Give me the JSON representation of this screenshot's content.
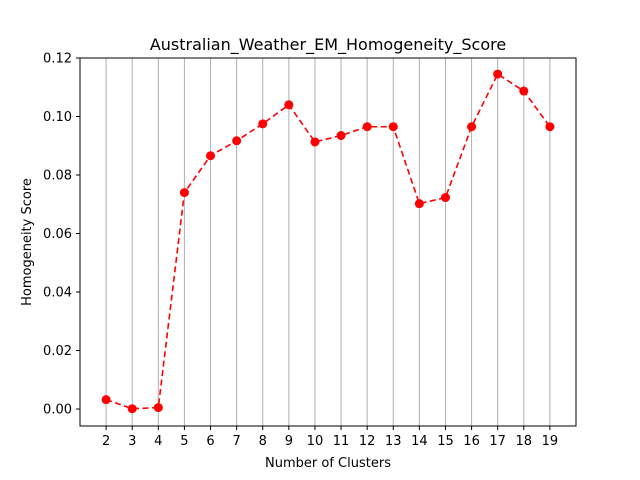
{
  "chart_data": {
    "type": "line",
    "title": "Australian_Weather_EM_Homogeneity_Score",
    "xlabel": "Number of Clusters",
    "ylabel": "Homogeneity Score",
    "x": [
      2,
      3,
      4,
      5,
      6,
      7,
      8,
      9,
      10,
      11,
      12,
      13,
      14,
      15,
      16,
      17,
      18,
      19
    ],
    "series": [
      {
        "values": [
          0.0032,
          0.0001,
          0.0005,
          0.074,
          0.0866,
          0.0917,
          0.0975,
          0.104,
          0.0913,
          0.0935,
          0.0965,
          0.0965,
          0.0702,
          0.0723,
          0.0965,
          0.1145,
          0.1087,
          0.0965
        ],
        "color": "#ff0000",
        "line_style": "dashed",
        "marker": "circle"
      }
    ],
    "xlim": [
      1.0,
      20.0
    ],
    "ylim": [
      -0.0058,
      0.12
    ],
    "x_ticks": [
      "2",
      "3",
      "4",
      "5",
      "6",
      "7",
      "8",
      "9",
      "10",
      "11",
      "12",
      "13",
      "14",
      "15",
      "16",
      "17",
      "18",
      "19"
    ],
    "y_ticks": [
      "0.00",
      "0.02",
      "0.04",
      "0.06",
      "0.08",
      "0.10",
      "0.12"
    ],
    "y_tick_values": [
      0.0,
      0.02,
      0.04,
      0.06,
      0.08,
      0.1,
      0.12
    ],
    "grid": "vertical",
    "grid_color": "#b0b0b0",
    "legend": "none"
  }
}
